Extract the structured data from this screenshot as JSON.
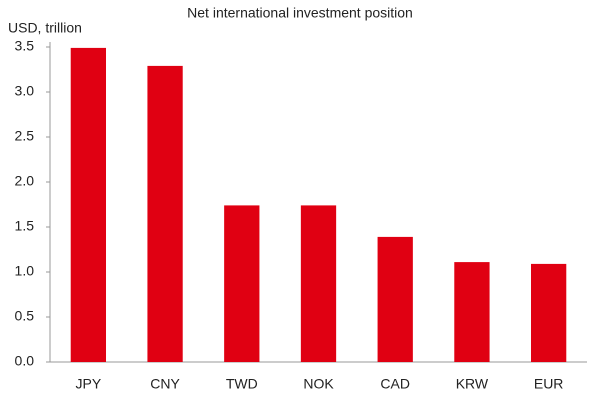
{
  "chart_data": {
    "type": "bar",
    "title": "Net international investment position",
    "y_label": "USD, trillion",
    "categories": [
      "JPY",
      "CNY",
      "TWD",
      "NOK",
      "CAD",
      "KRW",
      "EUR"
    ],
    "values": [
      3.49,
      3.29,
      1.74,
      1.74,
      1.39,
      1.11,
      1.09
    ],
    "color": "#e00012",
    "ylim": [
      0,
      3.5
    ],
    "yticks": [
      {
        "value": 0,
        "label": "0.0"
      },
      0.5,
      {
        "value": 1,
        "label": "1.0"
      },
      1.5,
      {
        "value": 2,
        "label": "2.0"
      },
      2.5,
      {
        "value": 3,
        "label": "3.0"
      },
      3.5
    ],
    "grid": false
  }
}
